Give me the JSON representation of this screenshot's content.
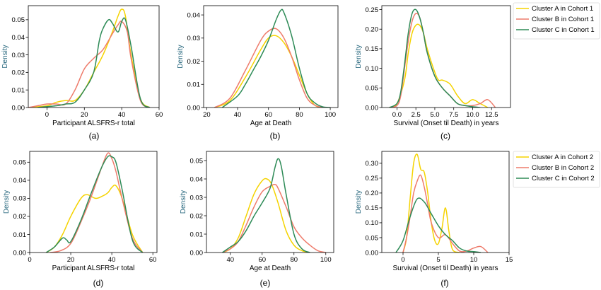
{
  "colors": {
    "cluster_a": "#F5D300",
    "cluster_b": "#EE7B6B",
    "cluster_c": "#2E8B57",
    "ylabel": "#2B6A80"
  },
  "chart_data": [
    {
      "type": "line",
      "panel_label": "(a)",
      "xlabel": "Participant ALSFRS-r total",
      "ylabel": "Density",
      "xlim": [
        -10,
        60
      ],
      "ylim": [
        0,
        0.058
      ],
      "xticks": [
        0,
        20,
        40,
        60
      ],
      "yticks": [
        0.0,
        0.01,
        0.02,
        0.03,
        0.04,
        0.05
      ],
      "ytick_labels": [
        "0.00",
        "0.01",
        "0.02",
        "0.03",
        "0.04",
        "0.05"
      ],
      "legend": null,
      "series": [
        {
          "color_key": "cluster_a",
          "x": [
            -10,
            0,
            5,
            10,
            15,
            20,
            25,
            30,
            35,
            38,
            40,
            42,
            45,
            50,
            55
          ],
          "y": [
            0,
            0.001,
            0.003,
            0.004,
            0.004,
            0.01,
            0.02,
            0.03,
            0.043,
            0.052,
            0.056,
            0.052,
            0.03,
            0.005,
            0
          ]
        },
        {
          "color_key": "cluster_b",
          "x": [
            -10,
            -5,
            0,
            5,
            10,
            15,
            20,
            25,
            30,
            35,
            38,
            40,
            43,
            45,
            50,
            55
          ],
          "y": [
            0,
            0.001,
            0.002,
            0.002,
            0.002,
            0.01,
            0.022,
            0.028,
            0.033,
            0.042,
            0.047,
            0.049,
            0.043,
            0.028,
            0.004,
            0
          ]
        },
        {
          "color_key": "cluster_c",
          "x": [
            -5,
            5,
            10,
            15,
            20,
            25,
            28,
            30,
            33,
            35,
            38,
            40,
            42,
            45,
            50,
            55
          ],
          "y": [
            0,
            0.001,
            0.002,
            0.003,
            0.01,
            0.02,
            0.038,
            0.045,
            0.05,
            0.048,
            0.043,
            0.049,
            0.05,
            0.035,
            0.005,
            0
          ]
        }
      ]
    },
    {
      "type": "line",
      "panel_label": "(b)",
      "xlabel": "Age at Death",
      "ylabel": "Density",
      "xlim": [
        18,
        105
      ],
      "ylim": [
        0,
        0.044
      ],
      "xticks": [
        20,
        40,
        60,
        80,
        100
      ],
      "yticks": [
        0.0,
        0.01,
        0.02,
        0.03,
        0.04
      ],
      "ytick_labels": [
        "0.00",
        "0.01",
        "0.02",
        "0.03",
        "0.04"
      ],
      "legend": null,
      "series": [
        {
          "color_key": "cluster_a",
          "x": [
            25,
            35,
            45,
            55,
            60,
            65,
            70,
            75,
            80,
            85,
            90,
            95
          ],
          "y": [
            0,
            0.003,
            0.013,
            0.025,
            0.03,
            0.031,
            0.028,
            0.022,
            0.014,
            0.006,
            0.001,
            0
          ]
        },
        {
          "color_key": "cluster_b",
          "x": [
            25,
            35,
            45,
            55,
            60,
            65,
            70,
            75,
            80,
            85,
            90,
            95
          ],
          "y": [
            0,
            0.004,
            0.016,
            0.029,
            0.033,
            0.034,
            0.03,
            0.022,
            0.012,
            0.004,
            0.001,
            0
          ]
        },
        {
          "color_key": "cluster_c",
          "x": [
            30,
            40,
            45,
            50,
            55,
            60,
            65,
            68,
            70,
            75,
            80,
            85,
            90,
            95,
            100
          ],
          "y": [
            0,
            0.005,
            0.01,
            0.016,
            0.022,
            0.029,
            0.038,
            0.042,
            0.041,
            0.031,
            0.017,
            0.006,
            0.002,
            0.0003,
            0
          ]
        }
      ]
    },
    {
      "type": "line",
      "panel_label": "(c)",
      "xlabel": "Survival (Onset til Death) in years",
      "ylabel": "Density",
      "xlim": [
        -2,
        15
      ],
      "ylim": [
        0,
        0.26
      ],
      "xticks": [
        0.0,
        2.5,
        5.0,
        7.5,
        10.0,
        12.5
      ],
      "xtick_labels": [
        "0.0",
        "2.5",
        "5.0",
        "7.5",
        "10.0",
        "12.5"
      ],
      "yticks": [
        0.0,
        0.05,
        0.1,
        0.15,
        0.2,
        0.25
      ],
      "ytick_labels": [
        "0.00",
        "0.05",
        "0.10",
        "0.15",
        "0.20",
        "0.25"
      ],
      "legend": {
        "position": "right",
        "entries": [
          "Cluster A in Cohort 1",
          "Cluster B in Cohort 1",
          "Cluster C in Cohort 1"
        ]
      },
      "series": [
        {
          "color_key": "cluster_a",
          "x": [
            -1,
            0,
            1,
            1.5,
            2,
            2.5,
            3,
            3.5,
            4,
            5,
            5.5,
            6,
            7,
            8,
            9,
            10,
            11,
            12
          ],
          "y": [
            0,
            0.01,
            0.07,
            0.14,
            0.19,
            0.21,
            0.21,
            0.19,
            0.15,
            0.09,
            0.07,
            0.07,
            0.06,
            0.03,
            0.01,
            0.02,
            0.01,
            0
          ]
        },
        {
          "color_key": "cluster_b",
          "x": [
            -1,
            0,
            0.5,
            1,
            1.5,
            2,
            2.5,
            3,
            3.5,
            4,
            5,
            6,
            7,
            8,
            9,
            10,
            11,
            12,
            13
          ],
          "y": [
            0,
            0.005,
            0.03,
            0.1,
            0.17,
            0.22,
            0.24,
            0.23,
            0.19,
            0.14,
            0.08,
            0.05,
            0.03,
            0.01,
            0.005,
            0.005,
            0.01,
            0.02,
            0
          ]
        },
        {
          "color_key": "cluster_c",
          "x": [
            -1,
            0,
            0.5,
            1,
            1.5,
            2,
            2.5,
            3,
            3.5,
            4,
            5,
            6,
            7,
            8,
            9,
            10,
            11
          ],
          "y": [
            0,
            0.01,
            0.04,
            0.11,
            0.19,
            0.24,
            0.25,
            0.23,
            0.19,
            0.14,
            0.08,
            0.05,
            0.03,
            0.01,
            0.005,
            0.002,
            0
          ]
        }
      ]
    },
    {
      "type": "line",
      "panel_label": "(d)",
      "xlabel": "Participant ALSFRS-r total",
      "ylabel": "Density",
      "xlim": [
        0,
        62
      ],
      "ylim": [
        0,
        0.056
      ],
      "xticks": [
        0,
        20,
        40,
        60
      ],
      "yticks": [
        0.0,
        0.01,
        0.02,
        0.03,
        0.04,
        0.05
      ],
      "ytick_labels": [
        "0.00",
        "0.01",
        "0.02",
        "0.03",
        "0.04",
        "0.05"
      ],
      "legend": null,
      "series": [
        {
          "color_key": "cluster_a",
          "x": [
            8,
            12,
            16,
            20,
            25,
            28,
            32,
            35,
            38,
            40,
            42,
            45,
            50,
            55
          ],
          "y": [
            0,
            0.003,
            0.01,
            0.02,
            0.03,
            0.032,
            0.03,
            0.031,
            0.033,
            0.036,
            0.037,
            0.03,
            0.01,
            0
          ]
        },
        {
          "color_key": "cluster_b",
          "x": [
            10,
            15,
            20,
            25,
            30,
            35,
            38,
            40,
            42,
            45,
            50,
            55
          ],
          "y": [
            0,
            0.001,
            0.005,
            0.017,
            0.031,
            0.047,
            0.055,
            0.052,
            0.045,
            0.03,
            0.008,
            0
          ]
        },
        {
          "color_key": "cluster_c",
          "x": [
            8,
            12,
            16,
            18,
            20,
            25,
            30,
            35,
            38,
            40,
            42,
            45,
            50,
            55
          ],
          "y": [
            0,
            0.003,
            0.008,
            0.007,
            0.006,
            0.018,
            0.033,
            0.047,
            0.053,
            0.053,
            0.05,
            0.035,
            0.007,
            0
          ]
        }
      ]
    },
    {
      "type": "line",
      "panel_label": "(e)",
      "xlabel": "Age at Death",
      "ylabel": "Density",
      "xlim": [
        25,
        105
      ],
      "ylim": [
        0,
        0.055
      ],
      "xticks": [
        40,
        60,
        80,
        100
      ],
      "yticks": [
        0.0,
        0.01,
        0.02,
        0.03,
        0.04,
        0.05
      ],
      "ytick_labels": [
        "0.00",
        "0.01",
        "0.02",
        "0.03",
        "0.04",
        "0.05"
      ],
      "legend": null,
      "series": [
        {
          "color_key": "cluster_a",
          "x": [
            35,
            40,
            45,
            50,
            55,
            60,
            63,
            66,
            70,
            75,
            80,
            85,
            90
          ],
          "y": [
            0,
            0.002,
            0.008,
            0.02,
            0.032,
            0.039,
            0.04,
            0.037,
            0.027,
            0.012,
            0.004,
            0.001,
            0
          ]
        },
        {
          "color_key": "cluster_b",
          "x": [
            35,
            40,
            45,
            50,
            55,
            60,
            65,
            68,
            70,
            75,
            80,
            85,
            90,
            95,
            100
          ],
          "y": [
            0,
            0.002,
            0.006,
            0.015,
            0.025,
            0.033,
            0.036,
            0.037,
            0.035,
            0.025,
            0.014,
            0.008,
            0.004,
            0.001,
            0
          ]
        },
        {
          "color_key": "cluster_c",
          "x": [
            35,
            40,
            45,
            50,
            55,
            60,
            65,
            68,
            70,
            72,
            75,
            80,
            85,
            90
          ],
          "y": [
            0,
            0.003,
            0.006,
            0.012,
            0.02,
            0.027,
            0.035,
            0.046,
            0.051,
            0.047,
            0.032,
            0.01,
            0.002,
            0
          ]
        }
      ]
    },
    {
      "type": "line",
      "panel_label": "(f)",
      "xlabel": "Survival (Onset til Death) in years",
      "ylabel": "Density",
      "xlim": [
        -3,
        15
      ],
      "ylim": [
        0,
        0.34
      ],
      "xticks": [
        0,
        5,
        10,
        15
      ],
      "yticks": [
        0.0,
        0.05,
        0.1,
        0.15,
        0.2,
        0.25,
        0.3
      ],
      "ytick_labels": [
        "0.00",
        "0.05",
        "0.10",
        "0.15",
        "0.20",
        "0.25",
        "0.30"
      ],
      "legend": {
        "position": "right",
        "entries": [
          "Cluster A in Cohort 2",
          "Cluster B in Cohort 2",
          "Cluster C in Cohort 2"
        ]
      },
      "series": [
        {
          "color_key": "cluster_a",
          "x": [
            0,
            0.5,
            1,
            1.5,
            2,
            2.5,
            3,
            3.5,
            4,
            4.5,
            5,
            5.5,
            6,
            6.5,
            7,
            8
          ],
          "y": [
            0,
            0.05,
            0.18,
            0.3,
            0.33,
            0.28,
            0.27,
            0.2,
            0.1,
            0.04,
            0.03,
            0.08,
            0.15,
            0.07,
            0.01,
            0
          ]
        },
        {
          "color_key": "cluster_b",
          "x": [
            0,
            0.5,
            1,
            1.5,
            2,
            2.5,
            3,
            3.5,
            4,
            5,
            6,
            7,
            8,
            9,
            10,
            11,
            12
          ],
          "y": [
            0,
            0.05,
            0.12,
            0.2,
            0.24,
            0.26,
            0.22,
            0.16,
            0.1,
            0.05,
            0.06,
            0.03,
            0.005,
            0.005,
            0.015,
            0.02,
            0
          ]
        },
        {
          "color_key": "cluster_c",
          "x": [
            -1,
            0,
            1,
            2,
            3,
            4,
            5,
            6,
            7,
            8,
            9,
            10,
            11
          ],
          "y": [
            0,
            0.04,
            0.12,
            0.18,
            0.17,
            0.13,
            0.09,
            0.06,
            0.04,
            0.015,
            0.005,
            0.003,
            0
          ]
        }
      ]
    }
  ]
}
